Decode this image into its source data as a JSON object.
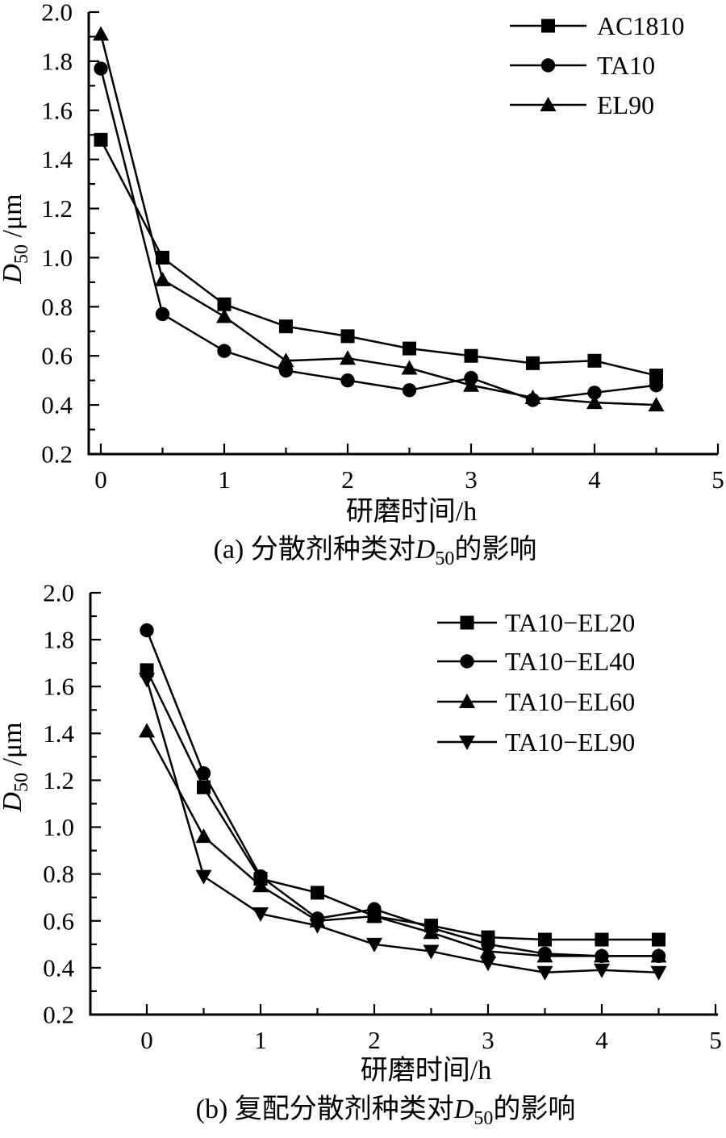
{
  "page": {
    "background": "#ffffff",
    "ink": "#000000"
  },
  "chart_data": [
    {
      "id": "a",
      "type": "line",
      "caption": {
        "prefix": "(a) 分散剂种类对",
        "var": "D",
        "var_sub": "50",
        "suffix": "的影响"
      },
      "xlabel": "研磨时间/h",
      "ylabel": {
        "var": "D",
        "var_sub": "50",
        "suffix": " /μm"
      },
      "xlim": [
        0,
        5
      ],
      "ylim": [
        0.2,
        2.0
      ],
      "x_major_ticks": [
        0,
        1,
        2,
        3,
        4,
        5
      ],
      "x_minor_step": 0.5,
      "y_major_step": 0.2,
      "y_minor_step": 0.1,
      "grid": false,
      "legend_position": "upper-right",
      "x": [
        0,
        0.5,
        1,
        1.5,
        2,
        2.5,
        3,
        3.5,
        4,
        4.5
      ],
      "series": [
        {
          "name": "AC1810",
          "marker": "square",
          "color": "#000000",
          "values": [
            1.48,
            1.0,
            0.81,
            0.72,
            0.68,
            0.63,
            0.6,
            0.57,
            0.58,
            0.52
          ]
        },
        {
          "name": "TA10",
          "marker": "circle",
          "color": "#000000",
          "values": [
            1.77,
            0.77,
            0.62,
            0.54,
            0.5,
            0.46,
            0.51,
            0.42,
            0.45,
            0.48
          ]
        },
        {
          "name": "EL90",
          "marker": "triangle-up",
          "color": "#000000",
          "values": [
            1.91,
            0.91,
            0.76,
            0.58,
            0.59,
            0.55,
            0.48,
            0.43,
            0.41,
            0.4
          ]
        }
      ]
    },
    {
      "id": "b",
      "type": "line",
      "caption": {
        "prefix": "(b) 复配分散剂种类对",
        "var": "D",
        "var_sub": "50",
        "suffix": "的影响"
      },
      "xlabel": "研磨时间/h",
      "ylabel": {
        "var": "D",
        "var_sub": "50",
        "suffix": " /μm"
      },
      "xlim": [
        0,
        5
      ],
      "ylim": [
        0.2,
        2.0
      ],
      "x_major_ticks": [
        0,
        1,
        2,
        3,
        4,
        5
      ],
      "x_minor_step": 0.5,
      "y_major_step": 0.2,
      "y_minor_step": 0.1,
      "grid": false,
      "legend_position": "upper-right",
      "x": [
        0,
        0.5,
        1,
        1.5,
        2,
        2.5,
        3,
        3.5,
        4,
        4.5
      ],
      "series": [
        {
          "name": "TA10−EL20",
          "marker": "square",
          "color": "#000000",
          "values": [
            1.67,
            1.17,
            0.78,
            0.72,
            0.62,
            0.58,
            0.53,
            0.52,
            0.52,
            0.52
          ]
        },
        {
          "name": "TA10−EL40",
          "marker": "circle",
          "color": "#000000",
          "values": [
            1.84,
            1.23,
            0.79,
            0.61,
            0.65,
            0.57,
            0.5,
            0.46,
            0.45,
            0.45
          ]
        },
        {
          "name": "TA10−EL60",
          "marker": "triangle-up",
          "color": "#000000",
          "values": [
            1.41,
            0.96,
            0.75,
            0.6,
            0.62,
            0.55,
            0.47,
            0.45,
            0.45,
            0.45
          ]
        },
        {
          "name": "TA10−EL90",
          "marker": "triangle-down",
          "color": "#000000",
          "values": [
            1.63,
            0.79,
            0.63,
            0.58,
            0.5,
            0.47,
            0.42,
            0.38,
            0.39,
            0.38
          ]
        }
      ]
    }
  ]
}
